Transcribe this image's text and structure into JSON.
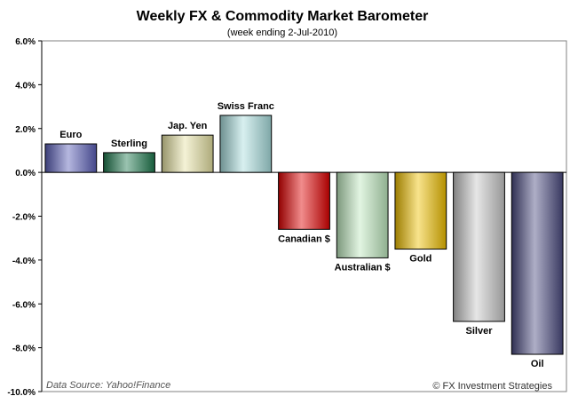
{
  "chart_data": {
    "type": "bar",
    "title": "Weekly FX & Commodity Market Barometer",
    "subtitle": "(week ending 2-Jul-2010)",
    "xlabel": "",
    "ylabel": "",
    "ylim": [
      -10,
      6
    ],
    "yticks": [
      6,
      4,
      2,
      0,
      -2,
      -4,
      -6,
      -8,
      -10
    ],
    "ytick_labels": [
      "6.0%",
      "4.0%",
      "2.0%",
      "0.0%",
      "-2.0%",
      "-4.0%",
      "-6.0%",
      "-8.0%",
      "-10.0%"
    ],
    "grid": false,
    "categories": [
      "Euro",
      "Sterling",
      "Jap. Yen",
      "Swiss Franc",
      "Canadian $",
      "Australian $",
      "Gold",
      "Silver",
      "Oil"
    ],
    "values": [
      1.3,
      0.9,
      1.7,
      2.6,
      -2.6,
      -3.9,
      -3.5,
      -6.8,
      -8.3
    ],
    "colors": [
      "#5b5fb8",
      "#1f7a4f",
      "#e6e3a3",
      "#a8dede",
      "#e00000",
      "#bfe9bf",
      "#f0c000",
      "#c8c8c8",
      "#4a4a80"
    ]
  },
  "footer": {
    "source": "Data Source: Yahoo!Finance",
    "credit": "© FX Investment Strategies"
  }
}
